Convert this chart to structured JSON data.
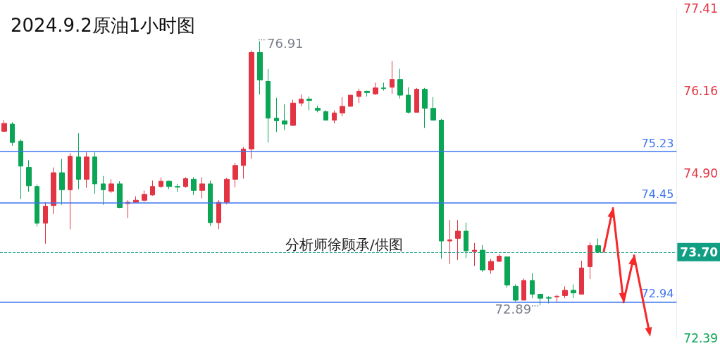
{
  "chart_data": {
    "type": "candlestick",
    "title": "2024.9.2原油1小时图",
    "categories": [
      null,
      null,
      null,
      null,
      null,
      null,
      null,
      null,
      null,
      null,
      null,
      null,
      null,
      null,
      null,
      null,
      null,
      null,
      null,
      null,
      null,
      null,
      null,
      null,
      null,
      null,
      null,
      null,
      null,
      null,
      null,
      null,
      null,
      null,
      null,
      null,
      null,
      null,
      null,
      null,
      null,
      null,
      null,
      null,
      null,
      null,
      null,
      null,
      null,
      null,
      null,
      null,
      null,
      null,
      null,
      null,
      null,
      null,
      null,
      null,
      null,
      null,
      null,
      null,
      null,
      null,
      null,
      null,
      null,
      null,
      null,
      null,
      null,
      null,
      null,
      null,
      null,
      null,
      null,
      null,
      null,
      null
    ],
    "ohlc": [
      [
        75.54,
        75.71,
        75.53,
        75.66
      ],
      [
        75.65,
        75.68,
        75.32,
        75.37
      ],
      [
        75.39,
        75.42,
        74.51,
        75.01
      ],
      [
        74.99,
        75.1,
        74.62,
        74.71
      ],
      [
        74.7,
        74.73,
        74.09,
        74.14
      ],
      [
        74.14,
        74.46,
        73.83,
        74.4
      ],
      [
        74.41,
        74.99,
        74.28,
        74.91
      ],
      [
        74.91,
        75.12,
        74.42,
        74.65
      ],
      [
        74.65,
        75.21,
        74.05,
        75.16
      ],
      [
        75.15,
        75.51,
        74.66,
        74.81
      ],
      [
        74.81,
        75.22,
        74.68,
        75.15
      ],
      [
        75.15,
        75.22,
        74.59,
        74.74
      ],
      [
        74.74,
        74.86,
        74.42,
        74.65
      ],
      [
        74.63,
        74.81,
        74.6,
        74.74
      ],
      [
        74.74,
        74.78,
        74.37,
        74.38
      ],
      [
        74.44,
        74.49,
        74.22,
        74.46
      ],
      [
        74.46,
        74.55,
        74.45,
        74.49
      ],
      [
        74.49,
        74.64,
        74.47,
        74.58
      ],
      [
        74.57,
        74.79,
        74.56,
        74.7
      ],
      [
        74.7,
        74.84,
        74.68,
        74.78
      ],
      [
        74.78,
        74.79,
        74.66,
        74.7
      ],
      [
        74.7,
        74.74,
        74.62,
        74.69
      ],
      [
        74.7,
        74.84,
        74.68,
        74.82
      ],
      [
        74.81,
        74.84,
        74.57,
        74.64
      ],
      [
        74.64,
        74.84,
        74.52,
        74.74
      ],
      [
        74.74,
        74.79,
        74.1,
        74.15
      ],
      [
        74.15,
        74.49,
        74.05,
        74.46
      ],
      [
        74.46,
        74.83,
        74.43,
        74.81
      ],
      [
        74.81,
        75.06,
        74.69,
        75.02
      ],
      [
        75.02,
        75.3,
        74.82,
        75.27
      ],
      [
        75.27,
        76.77,
        75.12,
        76.74
      ],
      [
        76.74,
        76.91,
        76.1,
        76.32
      ],
      [
        76.3,
        76.49,
        75.37,
        75.74
      ],
      [
        75.74,
        76.05,
        75.53,
        75.7
      ],
      [
        75.7,
        75.95,
        75.56,
        75.65
      ],
      [
        75.63,
        76.02,
        75.62,
        75.97
      ],
      [
        75.97,
        76.1,
        75.92,
        76.03
      ],
      [
        76.03,
        76.07,
        75.86,
        76.01
      ],
      [
        75.89,
        75.93,
        75.83,
        75.86
      ],
      [
        75.84,
        75.86,
        75.71,
        75.71
      ],
      [
        75.71,
        75.86,
        75.66,
        75.82
      ],
      [
        75.82,
        76.06,
        75.77,
        75.92
      ],
      [
        75.92,
        76.09,
        75.92,
        76.09
      ],
      [
        76.07,
        76.19,
        75.97,
        76.15
      ],
      [
        76.15,
        76.16,
        76.07,
        76.13
      ],
      [
        76.11,
        76.28,
        76.09,
        76.2
      ],
      [
        76.2,
        76.28,
        76.16,
        76.19
      ],
      [
        76.21,
        76.61,
        76.11,
        76.33
      ],
      [
        76.33,
        76.49,
        76.04,
        76.09
      ],
      [
        76.09,
        76.21,
        75.81,
        75.83
      ],
      [
        75.83,
        76.2,
        75.83,
        76.18
      ],
      [
        76.18,
        76.2,
        75.59,
        75.89
      ],
      [
        75.89,
        76.06,
        75.71,
        75.71
      ],
      [
        75.71,
        75.73,
        73.6,
        73.87
      ],
      [
        73.87,
        74.19,
        73.52,
        73.89
      ],
      [
        73.91,
        74.19,
        73.58,
        74.02
      ],
      [
        74.02,
        74.15,
        73.61,
        73.72
      ],
      [
        73.71,
        73.84,
        73.49,
        73.73
      ],
      [
        73.73,
        73.81,
        73.4,
        73.43
      ],
      [
        73.43,
        73.6,
        73.37,
        73.56
      ],
      [
        73.56,
        73.67,
        73.55,
        73.64
      ],
      [
        73.63,
        73.63,
        73.16,
        73.2
      ],
      [
        73.18,
        73.21,
        72.95,
        72.97
      ],
      [
        72.97,
        73.3,
        72.97,
        73.27
      ],
      [
        73.27,
        73.38,
        73.0,
        73.06
      ],
      [
        73.06,
        73.06,
        72.89,
        73.0
      ],
      [
        73.01,
        73.03,
        72.92,
        73.0
      ],
      [
        73.02,
        73.05,
        72.94,
        73.03
      ],
      [
        73.04,
        73.18,
        73.0,
        73.12
      ],
      [
        73.12,
        73.21,
        73.0,
        73.08
      ],
      [
        73.06,
        73.57,
        73.06,
        73.46
      ],
      [
        73.48,
        73.85,
        73.29,
        73.8
      ],
      [
        73.8,
        73.91,
        73.7,
        73.7
      ],
      null,
      null,
      null,
      null,
      null,
      null,
      null,
      null,
      null
    ],
    "colors": [
      "#e23442",
      "#0aa555",
      "#0aa555",
      "#0aa555",
      "#0aa555",
      "#e23442",
      "#e23442",
      "#0aa555",
      "#e23442",
      "#0aa555",
      "#e23442",
      "#0aa555",
      "#0aa555",
      "#e23442",
      "#0aa555",
      "#e23442",
      "#e23442",
      "#e23442",
      "#e23442",
      "#e23442",
      "#0aa555",
      "#0aa555",
      "#e23442",
      "#0aa555",
      "#e23442",
      "#0aa555",
      "#e23442",
      "#e23442",
      "#e23442",
      "#e23442",
      "#e23442",
      "#0aa555",
      "#0aa555",
      "#0aa555",
      "#0aa555",
      "#e23442",
      "#e23442",
      "#0aa555",
      "#0aa555",
      "#0aa555",
      "#e23442",
      "#e23442",
      "#e23442",
      "#e23442",
      "#0aa555",
      "#e23442",
      "#0aa555",
      "#e23442",
      "#0aa555",
      "#0aa555",
      "#e23442",
      "#0aa555",
      "#0aa555",
      "#0aa555",
      "#e23442",
      "#e23442",
      "#0aa555",
      "#e23442",
      "#0aa555",
      "#e23442",
      "#e23442",
      "#0aa555",
      "#0aa555",
      "#e23442",
      "#0aa555",
      "#0aa555",
      "#0aa555",
      "#e23442",
      "#e23442",
      "#0aa555",
      "#e23442",
      "#e23442",
      "#0aa555",
      null,
      null,
      null,
      null,
      null,
      null,
      null,
      null,
      null
    ],
    "ylim": [
      72.39,
      77.41
    ],
    "yticks": [
      72.39,
      {
        "value": 74.9,
        "label": "74.90"
      },
      76.16,
      77.41
    ],
    "grid": false,
    "ref_lines": [
      {
        "axis": "y",
        "value": 75.23,
        "label": "75.23",
        "color": "#3f74f0",
        "line_style": "solid"
      },
      {
        "axis": "y",
        "value": 74.45,
        "label": "74.45",
        "color": "#3f74f0",
        "line_style": "solid"
      },
      {
        "axis": "y",
        "value": 72.94,
        "label": "72.94",
        "color": "#3f74f0",
        "line_style": "solid"
      },
      {
        "axis": "y",
        "value": 73.7,
        "label": "73.70",
        "color": "#129e82",
        "line_style": "dashed"
      }
    ],
    "annotations": [
      "76.91",
      {
        "text": "72.89",
        "y": 72.89
      },
      "分析师徐顾承/供图"
    ]
  }
}
